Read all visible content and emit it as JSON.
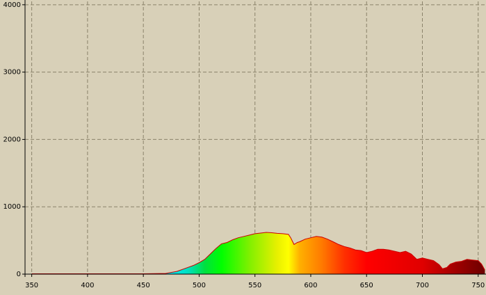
{
  "colors": {
    "background": "#d8d0b8",
    "grid": "#8a826a",
    "axis": "#000000",
    "outline": "#cc0000"
  },
  "chart_data": {
    "type": "area",
    "title": "",
    "xlabel": "",
    "ylabel": "",
    "xlim": [
      344,
      757
    ],
    "ylim": [
      0,
      4050
    ],
    "grid": true,
    "xticks": [
      350,
      400,
      450,
      500,
      550,
      600,
      650,
      700,
      750
    ],
    "yticks": [
      0,
      1000,
      2000,
      3000,
      4000
    ],
    "fill": "wavelength-colored spectrum (cyan, green, yellow, orange, red, dark red)",
    "series": [
      {
        "x": [
          350,
          400,
          450,
          470,
          480,
          490,
          495,
          500,
          505,
          510,
          515,
          520,
          525,
          530,
          535,
          540,
          545,
          550,
          555,
          560,
          565,
          570,
          575,
          580,
          582,
          585,
          588,
          590,
          595,
          600,
          605,
          610,
          615,
          620,
          625,
          630,
          635,
          640,
          645,
          650,
          655,
          660,
          665,
          670,
          675,
          680,
          685,
          690,
          695,
          700,
          705,
          710,
          715,
          718,
          722,
          725,
          730,
          735,
          740,
          745,
          750,
          753,
          756
        ],
        "y": [
          5,
          5,
          5,
          10,
          40,
          100,
          130,
          170,
          220,
          300,
          380,
          450,
          470,
          510,
          540,
          560,
          580,
          600,
          610,
          620,
          615,
          605,
          600,
          590,
          540,
          440,
          470,
          480,
          520,
          540,
          560,
          550,
          520,
          480,
          440,
          410,
          390,
          360,
          350,
          320,
          340,
          370,
          370,
          360,
          340,
          320,
          340,
          300,
          220,
          240,
          220,
          200,
          140,
          80,
          100,
          150,
          180,
          190,
          220,
          210,
          200,
          150,
          60
        ]
      }
    ]
  }
}
